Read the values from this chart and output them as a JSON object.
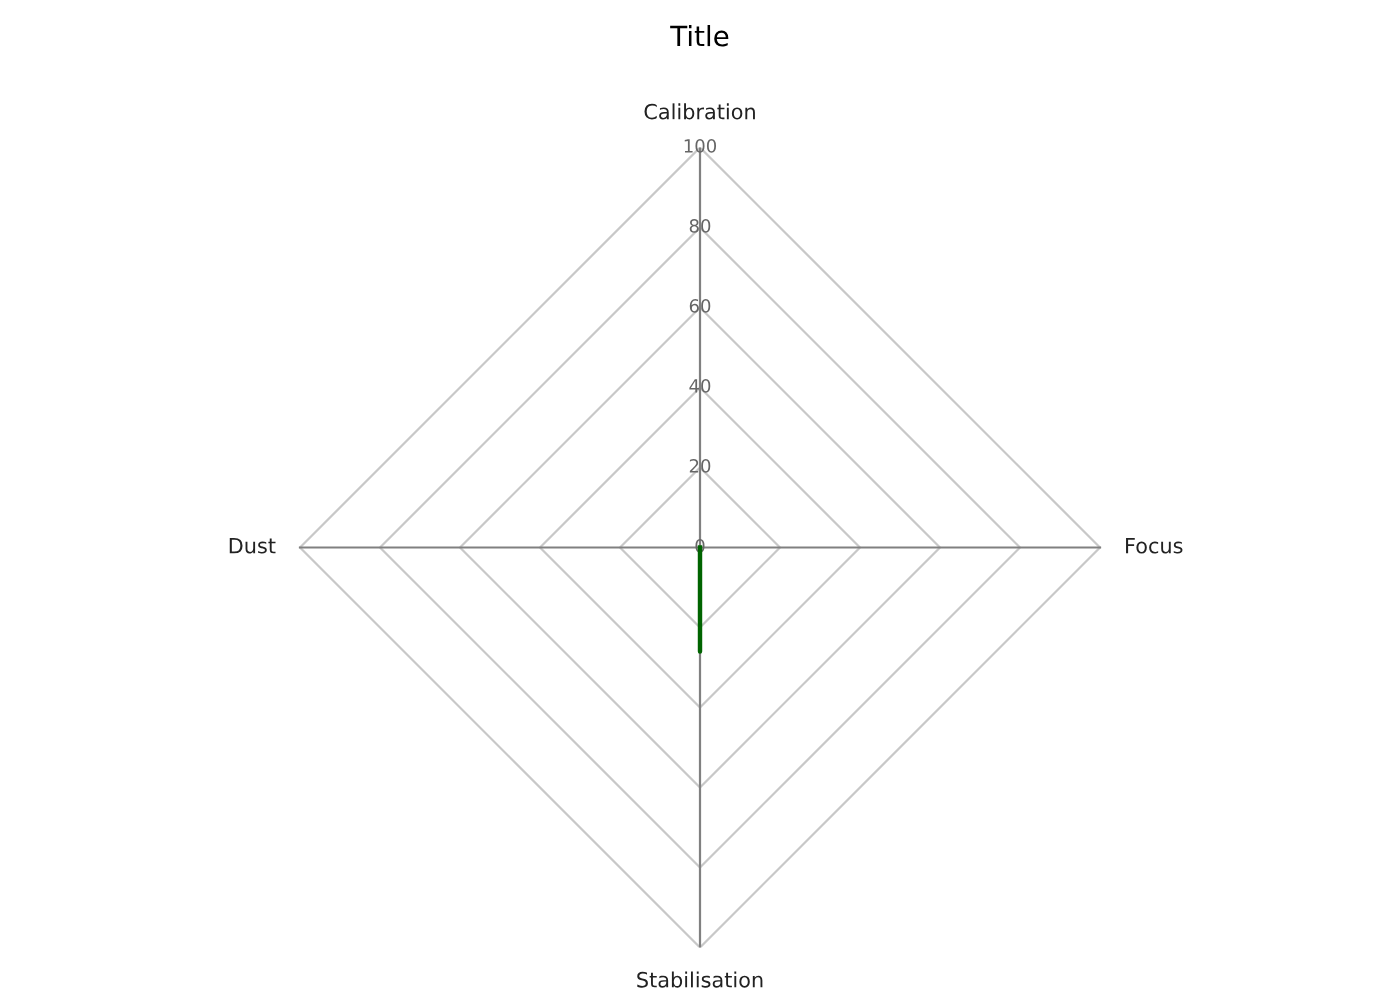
{
  "chart_data": {
    "type": "radar",
    "title": "Title",
    "categories": [
      "Calibration",
      "Focus",
      "Stabilisation",
      "Dust"
    ],
    "series": [
      {
        "color": "#006400",
        "values": [
          0,
          0,
          26,
          0
        ]
      }
    ],
    "ylim": [
      0,
      100
    ],
    "yticks": [
      0,
      20,
      40,
      60,
      80,
      100
    ],
    "grid": true,
    "marker": "none",
    "line_style": "solid"
  }
}
